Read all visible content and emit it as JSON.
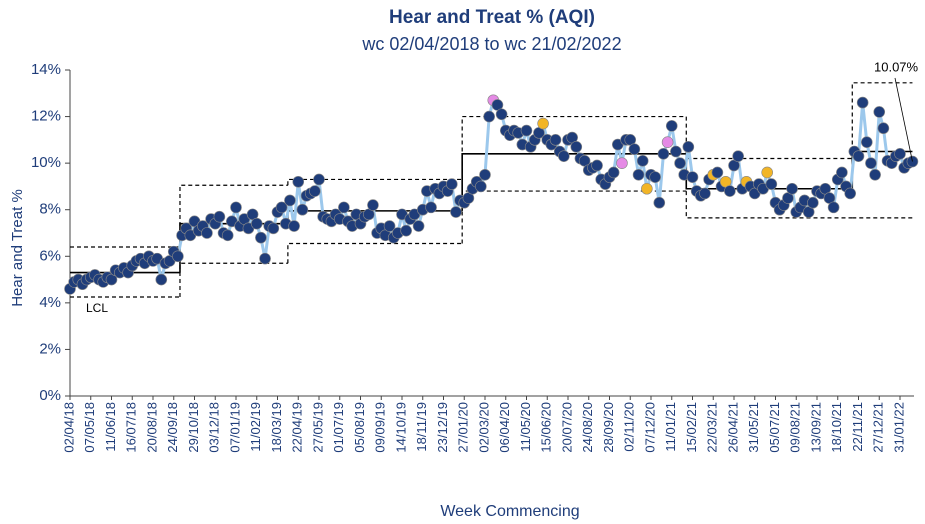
{
  "chart_data": {
    "type": "control",
    "title": "Hear and Treat % (AQI)",
    "subtitle": "wc 02/04/2018 to wc 21/02/2022",
    "x_label": "Week Commencing",
    "y_label": "Hear and Treat %",
    "ylim": [
      0,
      14
    ],
    "yticks": [
      {
        "value": 0,
        "label": "0%"
      },
      {
        "value": 2,
        "label": "2%"
      },
      {
        "value": 4,
        "label": "4%"
      },
      {
        "value": 6,
        "label": "6%"
      },
      {
        "value": 8,
        "label": "8%"
      },
      {
        "value": 10,
        "label": "10%"
      },
      {
        "value": 12,
        "label": "12%"
      },
      {
        "value": 14,
        "label": "14%"
      }
    ],
    "categories": [
      "02/04/18",
      null,
      null,
      null,
      null,
      "07/05/18",
      null,
      null,
      null,
      null,
      "11/06/18",
      null,
      null,
      null,
      null,
      "16/07/18",
      null,
      null,
      null,
      null,
      "20/08/18",
      null,
      null,
      null,
      null,
      "24/09/18",
      null,
      null,
      null,
      null,
      "29/10/18",
      null,
      null,
      null,
      null,
      "03/12/18",
      null,
      null,
      null,
      null,
      "07/01/19",
      null,
      null,
      null,
      null,
      "11/02/19",
      null,
      null,
      null,
      null,
      "18/03/19",
      null,
      null,
      null,
      null,
      "22/04/19",
      null,
      null,
      null,
      null,
      "27/05/19",
      null,
      null,
      null,
      null,
      "01/07/19",
      null,
      null,
      null,
      null,
      "05/08/19",
      null,
      null,
      null,
      null,
      "09/09/19",
      null,
      null,
      null,
      null,
      "14/10/19",
      null,
      null,
      null,
      null,
      "18/11/19",
      null,
      null,
      null,
      null,
      "23/12/19",
      null,
      null,
      null,
      null,
      "27/01/20",
      null,
      null,
      null,
      null,
      "02/03/20",
      null,
      null,
      null,
      null,
      "06/04/20",
      null,
      null,
      null,
      null,
      "11/05/20",
      null,
      null,
      null,
      null,
      "15/06/20",
      null,
      null,
      null,
      null,
      "20/07/20",
      null,
      null,
      null,
      null,
      "24/08/20",
      null,
      null,
      null,
      null,
      "28/09/20",
      null,
      null,
      null,
      null,
      "02/11/20",
      null,
      null,
      null,
      null,
      "07/12/20",
      null,
      null,
      null,
      null,
      "11/01/21",
      null,
      null,
      null,
      null,
      "15/02/21",
      null,
      null,
      null,
      null,
      "22/03/21",
      null,
      null,
      null,
      null,
      "26/04/21",
      null,
      null,
      null,
      null,
      "31/05/21",
      null,
      null,
      null,
      null,
      "05/07/21",
      null,
      null,
      null,
      null,
      "09/08/21",
      null,
      null,
      null,
      null,
      "13/09/21",
      null,
      null,
      null,
      null,
      "18/10/21",
      null,
      null,
      null,
      null,
      "22/11/21",
      null,
      null,
      null,
      null,
      "27/12/21",
      null,
      null,
      null,
      null,
      "31/01/22",
      null,
      null,
      null
    ],
    "values": [
      4.6,
      4.9,
      5.0,
      4.8,
      5.0,
      5.1,
      5.2,
      5.0,
      4.9,
      5.1,
      5.0,
      5.4,
      5.3,
      5.5,
      5.3,
      5.6,
      5.8,
      5.9,
      5.7,
      6.0,
      5.8,
      5.9,
      5.0,
      5.7,
      5.8,
      6.2,
      6.0,
      6.9,
      7.2,
      6.9,
      7.5,
      7.1,
      7.3,
      7.0,
      7.6,
      7.4,
      7.7,
      7.0,
      6.9,
      7.5,
      8.1,
      7.3,
      7.6,
      7.2,
      7.8,
      7.4,
      6.8,
      5.9,
      7.3,
      7.2,
      7.9,
      8.1,
      7.4,
      8.4,
      7.3,
      9.2,
      8.0,
      8.6,
      8.7,
      8.8,
      9.3,
      7.7,
      7.6,
      7.5,
      7.8,
      7.6,
      8.1,
      7.5,
      7.3,
      7.8,
      7.4,
      7.7,
      7.8,
      8.2,
      7.0,
      7.2,
      6.9,
      7.3,
      6.8,
      7.0,
      7.8,
      7.1,
      7.6,
      7.8,
      7.3,
      8.0,
      8.8,
      8.1,
      8.9,
      8.7,
      9.0,
      8.8,
      9.1,
      7.9,
      8.4,
      8.3,
      8.5,
      8.9,
      9.2,
      9.0,
      9.5,
      12.0,
      12.7,
      12.5,
      12.1,
      11.4,
      11.2,
      11.4,
      11.3,
      10.8,
      11.4,
      10.7,
      11.0,
      11.3,
      11.7,
      11.0,
      10.8,
      11.0,
      10.5,
      10.3,
      11.0,
      11.1,
      10.7,
      10.2,
      10.1,
      9.7,
      9.8,
      9.9,
      9.3,
      9.1,
      9.4,
      9.6,
      10.8,
      10.0,
      11.0,
      11.0,
      10.6,
      9.5,
      10.1,
      8.9,
      9.5,
      9.4,
      8.3,
      10.4,
      10.9,
      11.6,
      10.5,
      10.0,
      9.5,
      10.7,
      9.4,
      8.8,
      8.6,
      8.7,
      9.3,
      9.5,
      9.6,
      9.0,
      9.2,
      8.8,
      9.9,
      10.3,
      8.9,
      9.2,
      9.0,
      8.7,
      9.1,
      8.9,
      9.6,
      9.1,
      8.3,
      8.0,
      8.2,
      8.5,
      8.9,
      7.9,
      8.1,
      8.4,
      7.9,
      8.3,
      8.8,
      8.7,
      8.9,
      8.5,
      8.1,
      9.3,
      9.6,
      9.0,
      8.7,
      10.5,
      10.3,
      12.6,
      10.9,
      10.0,
      9.5,
      12.2,
      11.5,
      10.1,
      10.0,
      10.3,
      10.4,
      9.8,
      10.0,
      10.07
    ],
    "line_color": "#9cc8ec",
    "marker_color": "#1f3d7a",
    "highlight_points": {
      "102": "#e58ae5",
      "133": "#e58ae5",
      "144": "#e58ae5",
      "114": "#f2b526",
      "139": "#f2b526",
      "155": "#f2b526",
      "158": "#f2b526",
      "163": "#f2b526",
      "168": "#f2b526"
    },
    "control_limits": [
      {
        "weeks": 27,
        "mean": 5.3,
        "ucl": 6.4,
        "lcl": 4.25
      },
      {
        "weeks": 26,
        "mean": 7.4,
        "ucl": 9.05,
        "lcl": 5.7
      },
      {
        "weeks": 42,
        "mean": 7.95,
        "ucl": 9.3,
        "lcl": 6.55
      },
      {
        "weeks": 54,
        "mean": 10.4,
        "ucl": 12.0,
        "lcl": 8.8
      },
      {
        "weeks": 40,
        "mean": 8.9,
        "ucl": 10.2,
        "lcl": 7.65
      },
      {
        "weeks": 15,
        "mean": 10.5,
        "ucl": 13.45,
        "lcl": 7.65
      }
    ],
    "lcl_label": "LCL",
    "last_value_label": "10.07%"
  }
}
